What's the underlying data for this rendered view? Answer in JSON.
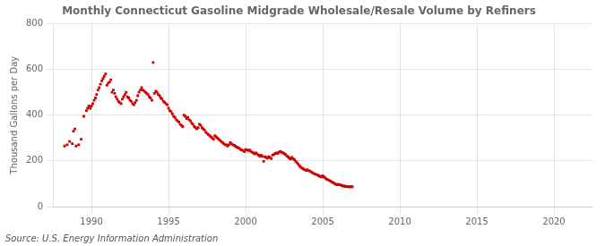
{
  "chart_data": {
    "type": "scatter",
    "title": "Monthly Connecticut Gasoline Midgrade Wholesale/Resale Volume by Refiners",
    "ylabel": "Thousand Gallons per Day",
    "annotations": [
      "Source: U.S. Energy Information Administration"
    ],
    "color": "#cc0000",
    "marker": "square",
    "grid": true,
    "xlim": [
      1987.5,
      2022.5
    ],
    "ylim": [
      0,
      800
    ],
    "xticks": [
      1990,
      1995,
      2000,
      2005,
      2010,
      2015,
      2020
    ],
    "yticks": [
      0,
      200,
      400,
      600,
      800
    ],
    "x": [
      1988.25,
      1988.42,
      1988.58,
      1988.75,
      1988.83,
      1988.92,
      1989.0,
      1989.17,
      1989.33,
      1989.5,
      1989.67,
      1989.75,
      1989.83,
      1989.92,
      1990.0,
      1990.08,
      1990.17,
      1990.25,
      1990.33,
      1990.42,
      1990.5,
      1990.58,
      1990.67,
      1990.75,
      1990.83,
      1990.92,
      1991.0,
      1991.08,
      1991.17,
      1991.25,
      1991.33,
      1991.42,
      1991.5,
      1991.58,
      1991.67,
      1991.75,
      1991.83,
      1991.92,
      1992.0,
      1992.08,
      1992.17,
      1992.25,
      1992.33,
      1992.42,
      1992.5,
      1992.58,
      1992.67,
      1992.75,
      1992.83,
      1992.92,
      1993.0,
      1993.08,
      1993.17,
      1993.25,
      1993.33,
      1993.42,
      1993.5,
      1993.58,
      1993.67,
      1993.75,
      1993.83,
      1993.92,
      1994.0,
      1994.08,
      1994.17,
      1994.25,
      1994.33,
      1994.42,
      1994.5,
      1994.58,
      1994.67,
      1994.75,
      1994.83,
      1994.92,
      1995.0,
      1995.08,
      1995.17,
      1995.25,
      1995.33,
      1995.42,
      1995.5,
      1995.58,
      1995.67,
      1995.75,
      1995.83,
      1995.92,
      1996.0,
      1996.08,
      1996.17,
      1996.25,
      1996.33,
      1996.42,
      1996.5,
      1996.58,
      1996.67,
      1996.75,
      1996.83,
      1996.92,
      1997.0,
      1997.08,
      1997.17,
      1997.25,
      1997.33,
      1997.42,
      1997.5,
      1997.58,
      1997.67,
      1997.75,
      1997.83,
      1997.92,
      1998.0,
      1998.08,
      1998.17,
      1998.25,
      1998.33,
      1998.42,
      1998.5,
      1998.58,
      1998.67,
      1998.75,
      1998.83,
      1998.92,
      1999.0,
      1999.08,
      1999.17,
      1999.25,
      1999.33,
      1999.42,
      1999.5,
      1999.58,
      1999.67,
      1999.75,
      1999.83,
      1999.92,
      2000.0,
      2000.08,
      2000.17,
      2000.25,
      2000.33,
      2000.42,
      2000.5,
      2000.58,
      2000.67,
      2000.75,
      2000.83,
      2000.92,
      2001.0,
      2001.08,
      2001.17,
      2001.25,
      2001.33,
      2001.42,
      2001.5,
      2001.58,
      2001.67,
      2001.75,
      2001.83,
      2001.92,
      2002.0,
      2002.08,
      2002.17,
      2002.25,
      2002.33,
      2002.42,
      2002.5,
      2002.58,
      2002.67,
      2002.75,
      2002.83,
      2002.92,
      2003.0,
      2003.08,
      2003.17,
      2003.25,
      2003.33,
      2003.42,
      2003.5,
      2003.58,
      2003.67,
      2003.75,
      2003.83,
      2003.92,
      2004.0,
      2004.08,
      2004.17,
      2004.25,
      2004.33,
      2004.42,
      2004.5,
      2004.58,
      2004.67,
      2004.75,
      2004.83,
      2004.92,
      2005.0,
      2005.08,
      2005.17,
      2005.25,
      2005.33,
      2005.42,
      2005.5,
      2005.58,
      2005.67,
      2005.75,
      2005.83,
      2005.92,
      2006.0,
      2006.08,
      2006.17,
      2006.25,
      2006.33,
      2006.42,
      2006.5,
      2006.58,
      2006.67,
      2006.75,
      2006.83,
      2006.92
    ],
    "values": [
      265,
      270,
      285,
      275,
      330,
      340,
      265,
      270,
      295,
      395,
      420,
      430,
      440,
      430,
      440,
      450,
      465,
      475,
      490,
      510,
      520,
      535,
      550,
      560,
      570,
      580,
      530,
      540,
      545,
      555,
      500,
      510,
      495,
      480,
      470,
      460,
      455,
      450,
      470,
      480,
      490,
      500,
      480,
      475,
      465,
      460,
      450,
      445,
      455,
      465,
      485,
      500,
      510,
      520,
      510,
      505,
      500,
      495,
      490,
      480,
      475,
      465,
      630,
      495,
      505,
      500,
      490,
      485,
      475,
      470,
      460,
      455,
      450,
      445,
      430,
      420,
      415,
      405,
      395,
      390,
      380,
      375,
      370,
      360,
      355,
      350,
      400,
      395,
      385,
      390,
      380,
      375,
      365,
      360,
      350,
      345,
      340,
      345,
      360,
      355,
      345,
      340,
      335,
      325,
      320,
      315,
      310,
      305,
      300,
      295,
      310,
      305,
      300,
      295,
      290,
      285,
      280,
      275,
      270,
      270,
      265,
      270,
      280,
      275,
      270,
      268,
      265,
      260,
      258,
      255,
      250,
      248,
      245,
      240,
      250,
      248,
      245,
      248,
      242,
      238,
      235,
      230,
      235,
      230,
      225,
      220,
      225,
      220,
      198,
      218,
      215,
      212,
      218,
      215,
      210,
      225,
      228,
      232,
      235,
      232,
      238,
      242,
      238,
      235,
      232,
      228,
      222,
      218,
      212,
      208,
      215,
      210,
      205,
      198,
      192,
      185,
      178,
      172,
      168,
      165,
      162,
      158,
      162,
      158,
      155,
      152,
      148,
      145,
      142,
      140,
      138,
      135,
      132,
      130,
      135,
      130,
      125,
      120,
      118,
      115,
      112,
      108,
      105,
      102,
      98,
      95,
      98,
      95,
      95,
      92,
      90,
      90,
      88,
      88,
      87,
      87,
      87,
      87
    ]
  }
}
